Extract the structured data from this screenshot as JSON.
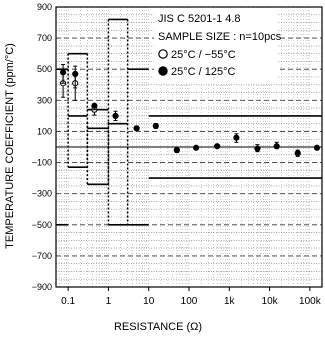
{
  "chart_data": {
    "type": "scatter",
    "xlabel": "RESISTANCE (Ω)",
    "ylabel": "TEMPERATURE COEFFICIENT (ppm/°C)",
    "xscale": "log",
    "xlim": [
      0.05,
      200000
    ],
    "ylim": [
      -900,
      900
    ],
    "yticks": [
      -900,
      -700,
      -500,
      -300,
      -100,
      100,
      300,
      500,
      700,
      900
    ],
    "ytick_labels": [
      "−900",
      "−700",
      "−500",
      "−300",
      "−100",
      "100",
      "300",
      "500",
      "700",
      "900"
    ],
    "xticks": [
      0.1,
      1,
      10,
      100,
      1000,
      10000,
      100000
    ],
    "xtick_labels": [
      "0.1",
      "1",
      "10",
      "100",
      "1k",
      "10k",
      "100k"
    ],
    "grid": true,
    "legend": {
      "title_lines": [
        "JIS C 5201-1 4.8",
        "SAMPLE SIZE : n=10pcs"
      ],
      "placement": "top-right",
      "entries": [
        {
          "marker": "open-circle",
          "label": "25°C / −55°C"
        },
        {
          "marker": "filled-circle",
          "label": "25°C / 125°C"
        }
      ]
    },
    "series": [
      {
        "name": "25°C / −55°C",
        "marker": "open-circle",
        "points": [
          {
            "x": 0.075,
            "y": 410,
            "ymin": 320,
            "ymax": 470
          },
          {
            "x": 0.15,
            "y": 410,
            "ymin": 300,
            "ymax": 470
          },
          {
            "x": 0.45,
            "y": 240,
            "ymin": 205,
            "ymax": 260
          }
        ]
      },
      {
        "name": "25°C / 125°C",
        "marker": "filled-circle",
        "points": [
          {
            "x": 0.075,
            "y": 480,
            "ymin": 410,
            "ymax": 530
          },
          {
            "x": 0.15,
            "y": 470,
            "ymin": 380,
            "ymax": 520
          },
          {
            "x": 0.45,
            "y": 265,
            "ymin": 240,
            "ymax": 275
          },
          {
            "x": 1.5,
            "y": 200,
            "ymin": 170,
            "ymax": 230
          },
          {
            "x": 5,
            "y": 120,
            "ymin": 105,
            "ymax": 135
          },
          {
            "x": 15,
            "y": 135,
            "ymin": 120,
            "ymax": 150
          },
          {
            "x": 50,
            "y": -20,
            "ymin": -35,
            "ymax": -10
          },
          {
            "x": 150,
            "y": -5,
            "ymin": -15,
            "ymax": 5
          },
          {
            "x": 500,
            "y": 5,
            "ymin": -5,
            "ymax": 15
          },
          {
            "x": 1500,
            "y": 60,
            "ymin": 30,
            "ymax": 85
          },
          {
            "x": 5000,
            "y": -10,
            "ymin": -30,
            "ymax": 15
          },
          {
            "x": 15000,
            "y": 5,
            "ymin": -10,
            "ymax": 30
          },
          {
            "x": 50000,
            "y": -40,
            "ymin": -60,
            "ymax": -20
          },
          {
            "x": 150000,
            "y": -5,
            "ymin": -15,
            "ymax": 5
          }
        ]
      }
    ],
    "spec_limits": {
      "solid": [
        {
          "x": [
            0.05,
            0.1
          ],
          "y": [
            500,
            -500
          ]
        },
        {
          "x": [
            0.1,
            0.3
          ],
          "y": [
            600,
            200
          ]
        },
        {
          "x": [
            0.3,
            1
          ],
          "y": [
            240,
            120
          ]
        },
        {
          "x": [
            1,
            3
          ],
          "y": [
            820,
            150
          ]
        },
        {
          "x": [
            3,
            10
          ],
          "y": [
            500,
            -500
          ]
        },
        {
          "x": [
            10,
            200000
          ],
          "y": [
            200,
            -200
          ]
        }
      ],
      "dotted": [
        {
          "x": [
            0.1,
            0.3
          ],
          "y": [
            600,
            -130
          ]
        },
        {
          "x": [
            0.3,
            1
          ],
          "y": [
            160,
            -240
          ]
        },
        {
          "x": [
            1,
            3
          ],
          "y": [
            820,
            -500
          ]
        }
      ]
    }
  }
}
